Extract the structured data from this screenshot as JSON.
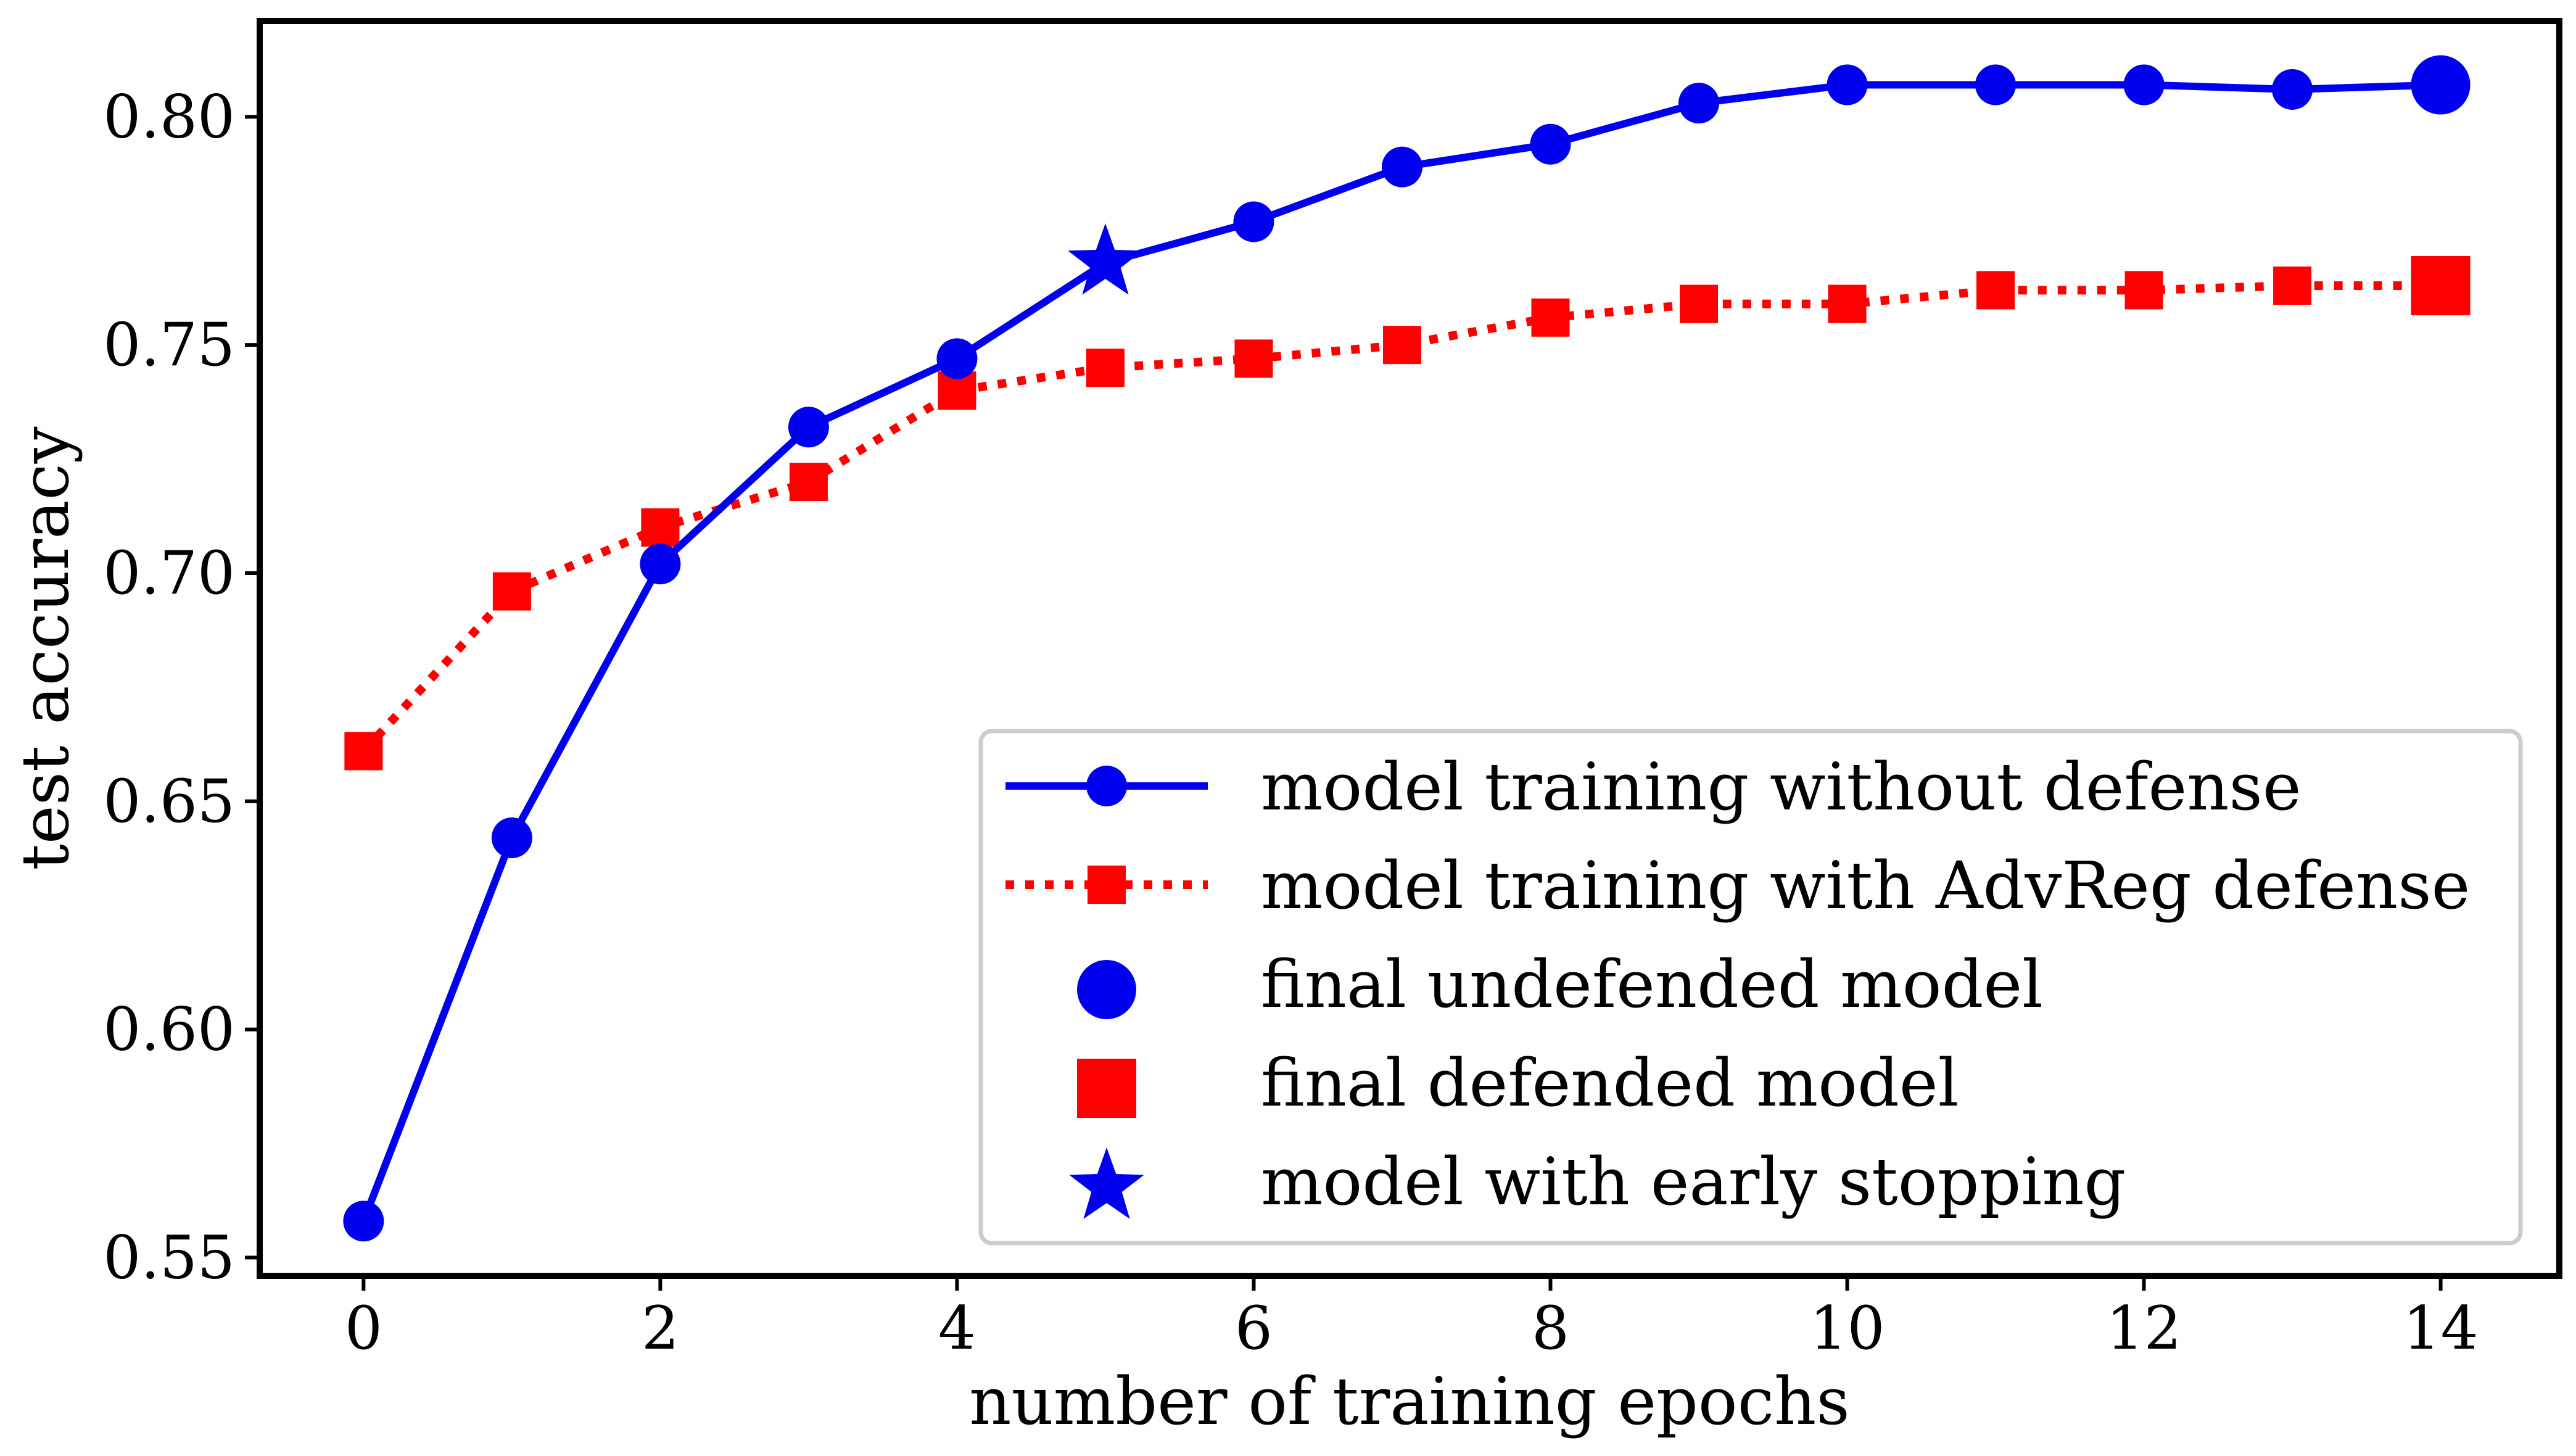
{
  "chart_data": {
    "type": "line",
    "title": "",
    "xlabel": "number of training epochs",
    "ylabel": "test accuracy",
    "xlim": [
      -0.7,
      14.8
    ],
    "ylim": [
      0.546,
      0.821
    ],
    "x_ticks": [
      0,
      2,
      4,
      6,
      8,
      10,
      12,
      14
    ],
    "x_tick_labels": [
      "0",
      "2",
      "4",
      "6",
      "8",
      "10",
      "12",
      "14"
    ],
    "y_ticks": [
      0.55,
      0.6,
      0.65,
      0.7,
      0.75,
      0.8
    ],
    "y_tick_labels": [
      "0.55",
      "0.60",
      "0.65",
      "0.70",
      "0.75",
      "0.80"
    ],
    "grid": false,
    "legend_position": "lower-right",
    "colors": {
      "undefended": "#0000ee",
      "defended": "#ff0000"
    },
    "series": [
      {
        "name": "model training without defense",
        "style": "solid",
        "marker": "circle",
        "x": [
          0,
          1,
          2,
          3,
          4,
          5,
          6,
          7,
          8,
          9,
          10,
          11,
          12,
          13,
          14
        ],
        "values": [
          0.558,
          0.642,
          0.702,
          0.732,
          0.747,
          0.768,
          0.777,
          0.789,
          0.794,
          0.803,
          0.807,
          0.807,
          0.807,
          0.806,
          0.807
        ]
      },
      {
        "name": "model training with AdvReg defense",
        "style": "dotted",
        "marker": "square",
        "x": [
          0,
          1,
          2,
          3,
          4,
          5,
          6,
          7,
          8,
          9,
          10,
          11,
          12,
          13,
          14
        ],
        "values": [
          0.661,
          0.696,
          0.71,
          0.72,
          0.74,
          0.745,
          0.747,
          0.75,
          0.756,
          0.759,
          0.759,
          0.762,
          0.762,
          0.763,
          0.763
        ]
      }
    ],
    "highlights": [
      {
        "name": "final undefended model",
        "marker": "circle",
        "color_key": "undefended",
        "x": 14,
        "y": 0.807
      },
      {
        "name": "final defended model",
        "marker": "square",
        "color_key": "defended",
        "x": 14,
        "y": 0.763
      },
      {
        "name": "model with early stopping",
        "marker": "star",
        "color_key": "undefended",
        "x": 5,
        "y": 0.768
      }
    ],
    "legend": [
      {
        "label": "model training without defense",
        "kind": "line-circle",
        "color_key": "undefended"
      },
      {
        "label": "model training with AdvReg defense",
        "kind": "dotted-square",
        "color_key": "defended"
      },
      {
        "label": "final undefended model",
        "kind": "big-circle",
        "color_key": "undefended"
      },
      {
        "label": "final defended model",
        "kind": "big-square",
        "color_key": "defended"
      },
      {
        "label": "model with early stopping",
        "kind": "star",
        "color_key": "undefended"
      }
    ]
  }
}
